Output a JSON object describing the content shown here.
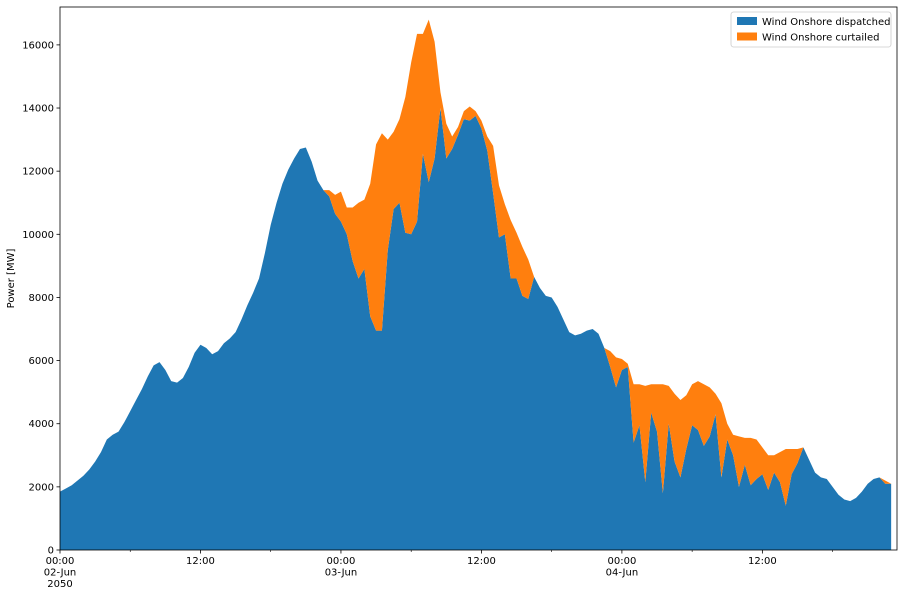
{
  "chart_data": {
    "type": "area",
    "stacked": true,
    "title": "",
    "xlabel": "",
    "ylabel": "Power [MW]",
    "ylim": [
      0,
      17200
    ],
    "xlim_hours": [
      0,
      71.5
    ],
    "y_ticks": [
      0,
      2000,
      4000,
      6000,
      8000,
      10000,
      12000,
      14000,
      16000
    ],
    "x_ticks": [
      {
        "hour": 0,
        "lines": [
          "00:00",
          "02-Jun",
          "2050"
        ]
      },
      {
        "hour": 12,
        "lines": [
          "12:00"
        ]
      },
      {
        "hour": 24,
        "lines": [
          "00:00",
          "03-Jun"
        ]
      },
      {
        "hour": 36,
        "lines": [
          "12:00"
        ]
      },
      {
        "hour": 48,
        "lines": [
          "00:00",
          "04-Jun"
        ]
      },
      {
        "hour": 60,
        "lines": [
          "12:00"
        ]
      }
    ],
    "grid": false,
    "legend_position": "top-right",
    "x_step_hours": 0.5,
    "series": [
      {
        "name": "Wind Onshore dispatched",
        "color": "#1f77b4",
        "values": [
          1850,
          1950,
          2050,
          2200,
          2350,
          2550,
          2800,
          3100,
          3500,
          3650,
          3750,
          4050,
          4400,
          4750,
          5100,
          5500,
          5850,
          5950,
          5700,
          5350,
          5300,
          5450,
          5800,
          6250,
          6500,
          6400,
          6200,
          6300,
          6550,
          6700,
          6900,
          7300,
          7750,
          8150,
          8600,
          9400,
          10300,
          11000,
          11600,
          12050,
          12400,
          12700,
          12750,
          12300,
          11700,
          11400,
          11200,
          10650,
          10400,
          10000,
          9150,
          8600,
          8900,
          7400,
          6950,
          6950,
          9500,
          10800,
          11000,
          10050,
          10000,
          10400,
          12550,
          11650,
          12400,
          14000,
          12400,
          12700,
          13150,
          13650,
          13600,
          13750,
          13350,
          12650,
          11300,
          9900,
          10000,
          8600,
          8600,
          8050,
          7950,
          8650,
          8300,
          8050,
          8000,
          7700,
          7300,
          6900,
          6800,
          6850,
          6950,
          7000,
          6850,
          6400,
          5800,
          5150,
          5700,
          5800,
          3400,
          3950,
          2150,
          4350,
          3750,
          1800,
          4000,
          2800,
          2300,
          3200,
          3950,
          3800,
          3300,
          3600,
          4300,
          2300,
          3500,
          3000,
          2000,
          2700,
          2050,
          2250,
          2400,
          1900,
          2450,
          2150,
          1400,
          2400,
          2750,
          3250,
          2850,
          2450,
          2300,
          2250,
          2000,
          1750,
          1600,
          1550,
          1650,
          1850,
          2100,
          2250,
          2300,
          2100,
          2100
        ]
      },
      {
        "name": "Wind Onshore curtailed",
        "color": "#ff7f0e",
        "values": [
          0,
          0,
          0,
          0,
          0,
          0,
          0,
          0,
          0,
          0,
          0,
          0,
          0,
          0,
          0,
          0,
          0,
          0,
          0,
          0,
          0,
          0,
          0,
          0,
          0,
          0,
          0,
          0,
          0,
          0,
          0,
          0,
          0,
          0,
          0,
          0,
          0,
          0,
          0,
          0,
          0,
          0,
          0,
          0,
          0,
          0,
          200,
          600,
          950,
          850,
          1700,
          2400,
          2200,
          4200,
          5900,
          6250,
          3500,
          2450,
          2650,
          4300,
          5450,
          5950,
          3800,
          5150,
          3700,
          500,
          1100,
          400,
          250,
          250,
          450,
          150,
          250,
          450,
          1500,
          1650,
          950,
          1850,
          1450,
          1550,
          1250,
          0,
          0,
          0,
          0,
          0,
          0,
          0,
          0,
          0,
          0,
          0,
          0,
          0,
          500,
          950,
          350,
          100,
          1850,
          1300,
          3050,
          900,
          1500,
          3450,
          1200,
          2150,
          2450,
          1700,
          1300,
          1550,
          1950,
          1550,
          650,
          2350,
          500,
          650,
          1600,
          850,
          1500,
          1250,
          850,
          1100,
          550,
          950,
          1800,
          800,
          450,
          0,
          0,
          0,
          0,
          0,
          0,
          0,
          0,
          0,
          0,
          0,
          0,
          0,
          0
        ]
      }
    ]
  }
}
